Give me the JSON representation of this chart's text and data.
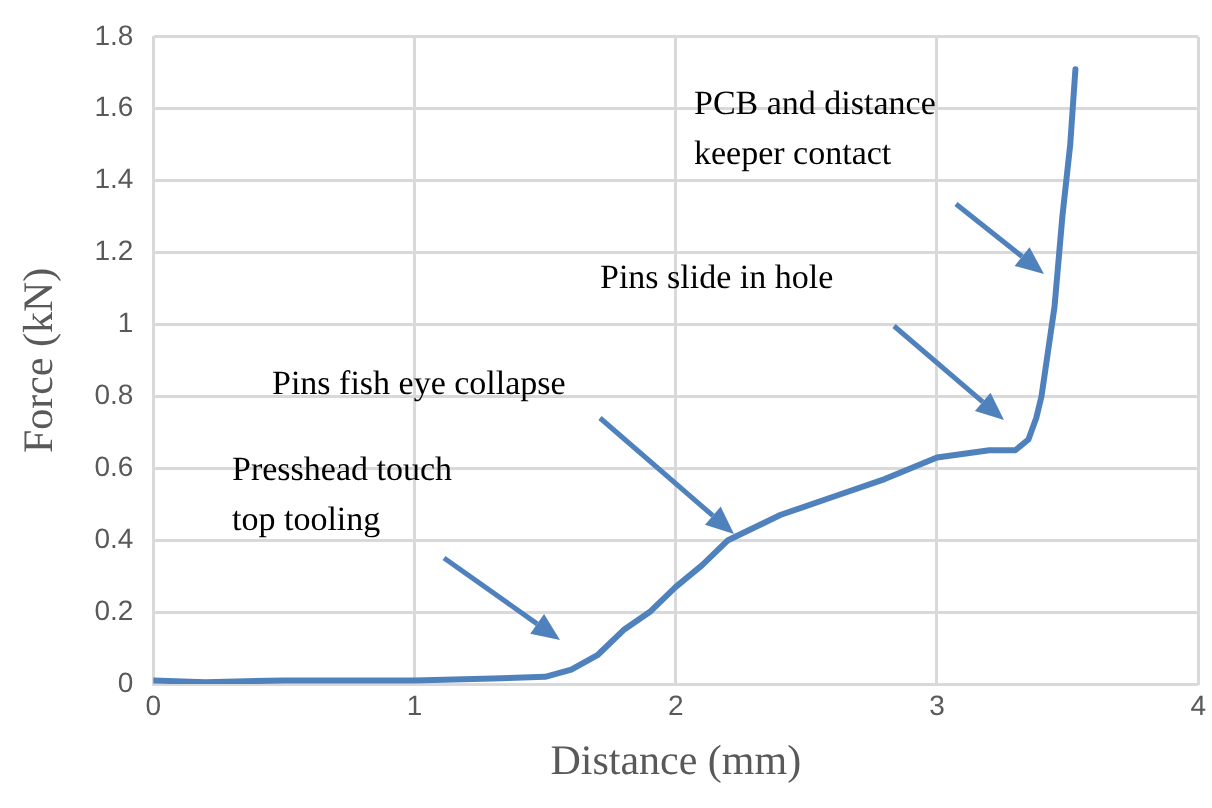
{
  "chart_data": {
    "type": "line",
    "xlabel": "Distance (mm)",
    "ylabel": "Force (kN)",
    "xlim": [
      0,
      4
    ],
    "xticks": [
      0,
      1,
      2,
      3,
      4
    ],
    "ylim": [
      0,
      1.8
    ],
    "yticks": [
      0,
      0.2,
      0.4,
      0.6,
      0.8,
      1,
      1.2,
      1.4,
      1.6,
      1.8
    ],
    "grid": true,
    "legend": false,
    "marker": "none",
    "line_style": "solid",
    "series": [
      {
        "color": "#4f81bd",
        "x": [
          0,
          0.2,
          0.5,
          1,
          1.3,
          1.5,
          1.6,
          1.7,
          1.8,
          1.9,
          2,
          2.1,
          2.2,
          2.4,
          2.6,
          2.8,
          3,
          3.2,
          3.3,
          3.35,
          3.38,
          3.4,
          3.45,
          3.48,
          3.51,
          3.53
        ],
        "values": [
          0.01,
          0.005,
          0.01,
          0.01,
          0.015,
          0.02,
          0.04,
          0.08,
          0.15,
          0.2,
          0.27,
          0.33,
          0.4,
          0.47,
          0.52,
          0.57,
          0.63,
          0.65,
          0.65,
          0.68,
          0.74,
          0.8,
          1.05,
          1.3,
          1.5,
          1.71
        ]
      }
    ],
    "annotations": [
      "Presshead touch top tooling",
      "Pins fish eye collapse",
      "Pins slide in hole",
      "PCB and distance keeper contact"
    ]
  }
}
